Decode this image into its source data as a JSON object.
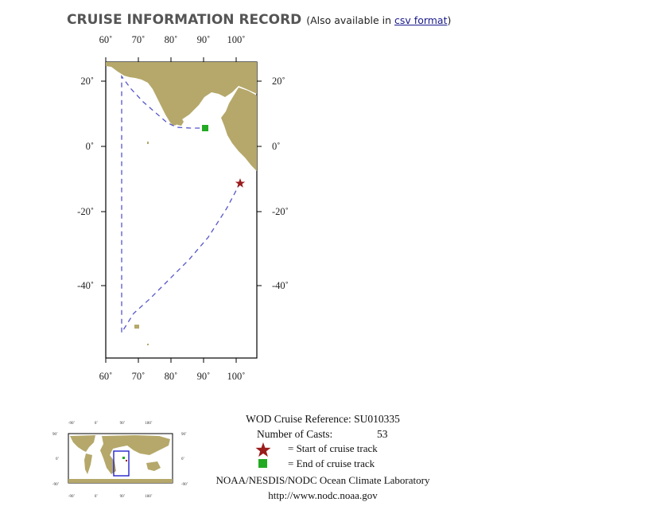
{
  "header": {
    "title": "CRUISE INFORMATION RECORD",
    "sub_prefix": "(Also available in ",
    "csv_link": "csv format",
    "sub_suffix": ")"
  },
  "map": {
    "lon_ticks": [
      "60˚",
      "70˚",
      "80˚",
      "90˚",
      "100˚"
    ],
    "lat_ticks": [
      "20˚",
      "0˚",
      "-20˚",
      "-40˚"
    ],
    "land_color": "#b5a86a",
    "track_color": "#5555cc",
    "start_marker_color": "#9b1c1c",
    "end_marker_color": "#22aa22"
  },
  "inset": {
    "lon_ticks": [
      "-90˚",
      "0˚",
      "90˚",
      "180˚"
    ],
    "lat_ticks": [
      "90˚",
      "0˚",
      "-90˚"
    ],
    "box_color": "#2222cc"
  },
  "legend": {
    "reference": "WOD Cruise Reference: SU010335",
    "casts_label": "Number of Casts:",
    "casts_value": "53",
    "start_label": "= Start of cruise track",
    "end_label": "= End of cruise track",
    "lab": "NOAA/NESDIS/NODC Ocean Climate Laboratory",
    "url": "http://www.nodc.noaa.gov"
  }
}
